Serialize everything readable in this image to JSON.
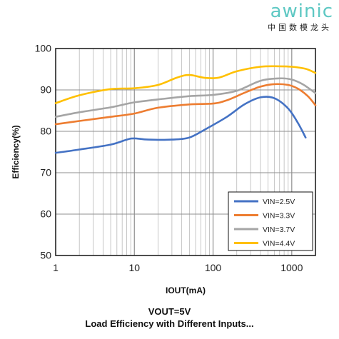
{
  "logo": {
    "wordmark": "awinic",
    "tagline": "中国数模龙头"
  },
  "caption": {
    "line1": "VOUT=5V",
    "line2": "Load Efficiency with Different Inputs..."
  },
  "chart_data": {
    "type": "line",
    "title": "",
    "xlabel": "IOUT(mA)",
    "ylabel": "Efficiency(%)",
    "xscale": "log",
    "xlim": [
      1,
      2000
    ],
    "ylim": [
      50,
      100
    ],
    "xticks": [
      1,
      10,
      100,
      1000
    ],
    "xtick_labels": [
      "1",
      "10",
      "100",
      "1000"
    ],
    "yticks": [
      50,
      60,
      70,
      80,
      90,
      100
    ],
    "ytick_labels": [
      "50",
      "60",
      "70",
      "80",
      "90",
      "100"
    ],
    "grid": true,
    "legend_position": "bottom-right",
    "series": [
      {
        "name": "VIN=2.5V",
        "color": "#4472c4",
        "x": [
          1,
          2,
          5,
          8,
          10,
          15,
          30,
          50,
          80,
          150,
          250,
          400,
          600,
          900,
          1200,
          1500
        ],
        "y": [
          74.8,
          75.6,
          76.8,
          78,
          78.3,
          78,
          78,
          78.5,
          80.5,
          83.5,
          86.5,
          88.2,
          88,
          85.5,
          82,
          78.5
        ]
      },
      {
        "name": "VIN=3.3V",
        "color": "#ed7d31",
        "x": [
          1,
          2,
          5,
          10,
          20,
          50,
          100,
          150,
          250,
          400,
          600,
          900,
          1200,
          1600,
          2000
        ],
        "y": [
          81.7,
          82.5,
          83.5,
          84.3,
          85.7,
          86.5,
          86.7,
          87.5,
          89.3,
          90.8,
          91.4,
          91.2,
          90.3,
          88.5,
          86.3
        ]
      },
      {
        "name": "VIN=3.7V",
        "color": "#a5a5a5",
        "x": [
          1,
          2,
          5,
          10,
          20,
          50,
          100,
          200,
          400,
          700,
          1000,
          1400,
          2000
        ],
        "y": [
          83.5,
          84.6,
          85.8,
          87,
          87.7,
          88.5,
          88.8,
          89.8,
          92.2,
          92.8,
          92.5,
          91.3,
          89.2
        ]
      },
      {
        "name": "VIN=4.4V",
        "color": "#ffc000",
        "x": [
          1,
          2,
          5,
          10,
          20,
          35,
          50,
          80,
          120,
          200,
          400,
          700,
          1000,
          1500,
          2000
        ],
        "y": [
          86.8,
          88.7,
          90.2,
          90.4,
          91.2,
          93,
          93.6,
          92.9,
          93,
          94.5,
          95.6,
          95.7,
          95.6,
          95.1,
          94.1
        ]
      }
    ]
  }
}
